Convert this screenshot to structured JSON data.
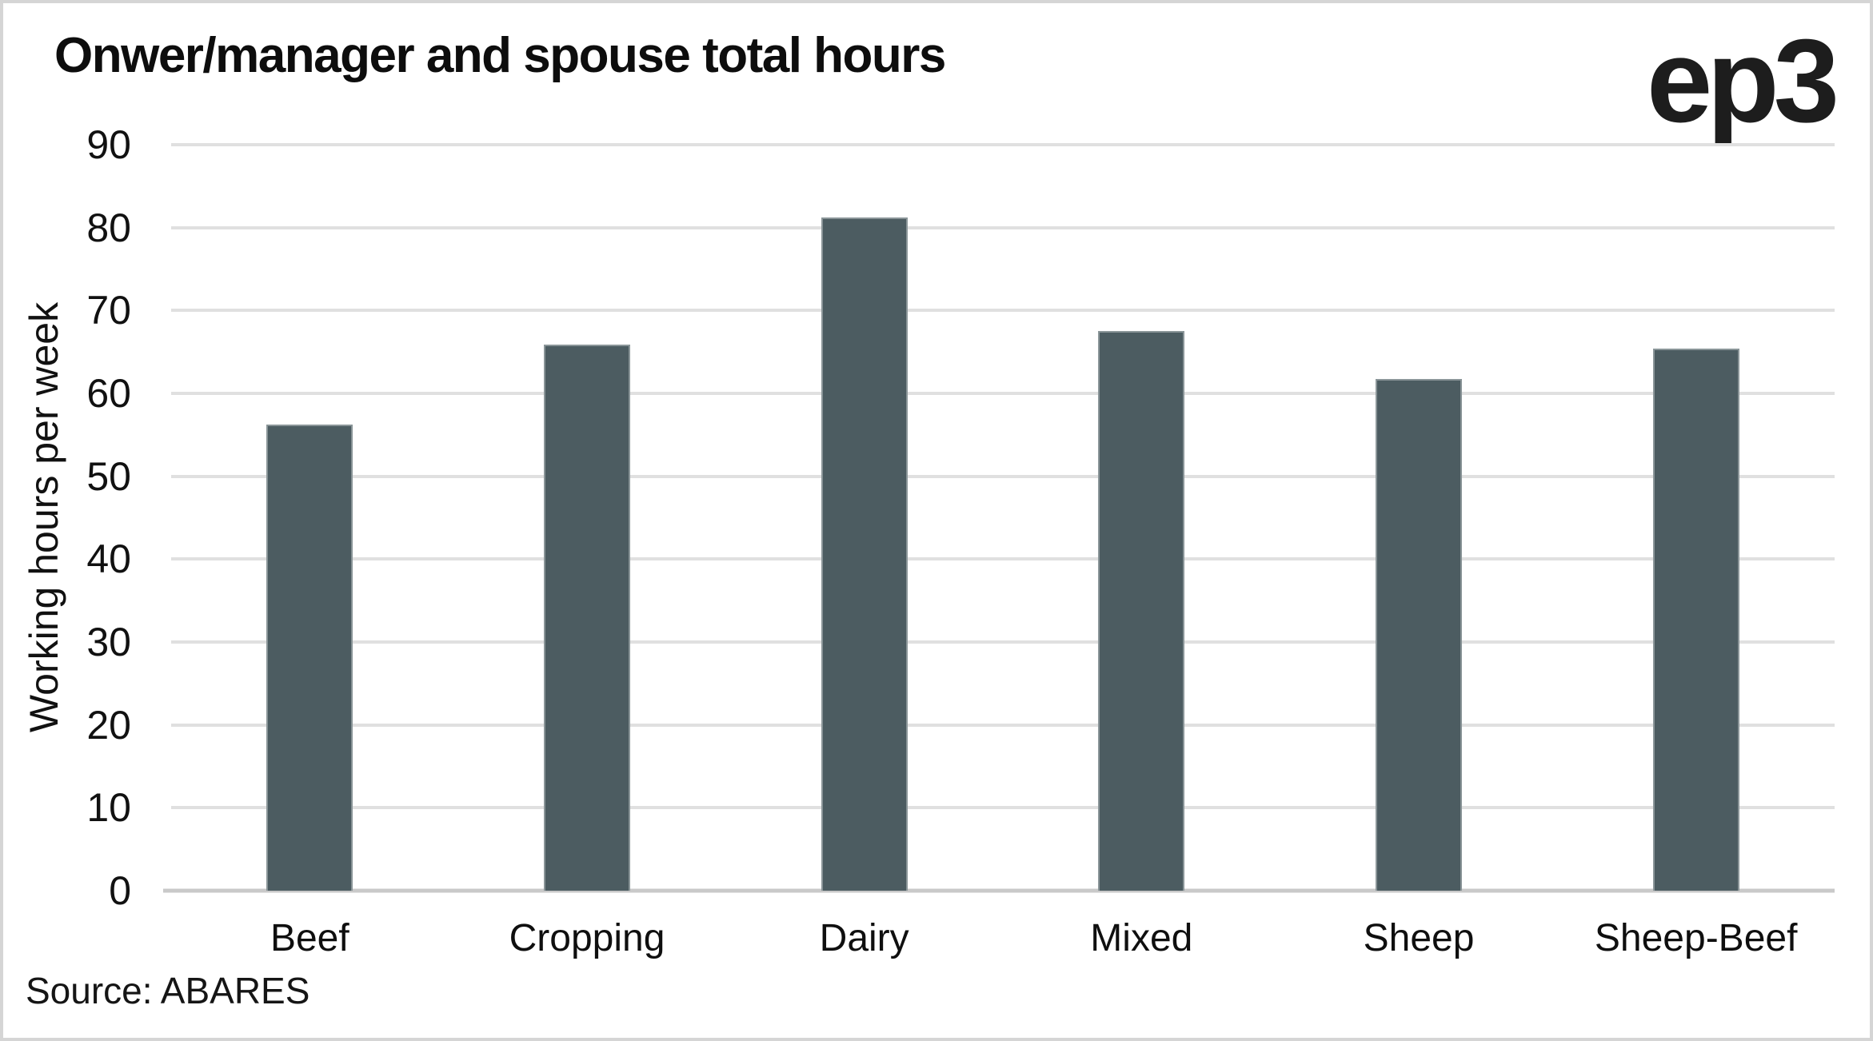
{
  "header": {
    "title": "Onwer/manager and spouse total hours",
    "logo": "ep3"
  },
  "source_note": "Source: ABARES",
  "colors": {
    "bar": "#4c5c61",
    "gridline": "#e0e0e0",
    "axis_line": "#c9c9c9",
    "text": "#111111",
    "frame_border": "#d5d5d5",
    "background": "#ffffff"
  },
  "chart_data": {
    "type": "bar",
    "title": "Onwer/manager and spouse total hours",
    "categories": [
      "Beef",
      "Cropping",
      "Dairy",
      "Mixed",
      "Sheep",
      "Sheep-Beef"
    ],
    "values": [
      56.2,
      65.9,
      81.2,
      67.5,
      61.7,
      65.4
    ],
    "xlabel": "",
    "ylabel": "Working hours per week",
    "ylim": [
      0,
      90
    ],
    "ytick_step": 10,
    "yticks": [
      0,
      10,
      20,
      30,
      40,
      50,
      60,
      70,
      80,
      90
    ],
    "grid": "horizontal gridlines only",
    "legend": "none",
    "source": "Source: ABARES",
    "logo": "ep3"
  }
}
